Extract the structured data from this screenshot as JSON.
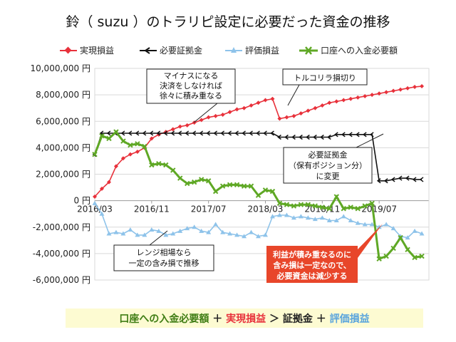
{
  "chart_data": {
    "type": "line",
    "title": "鈴（ suzu ）のトラリピ設定に必要だった資金の推移",
    "y_unit": "円",
    "ylim": [
      -6000000,
      10000000
    ],
    "y_ticks": [
      10000000,
      8000000,
      6000000,
      4000000,
      2000000,
      0,
      -2000000,
      -4000000,
      -6000000
    ],
    "y_tick_labels": [
      "10,000,000 円",
      "8,000,000 円",
      "6,000,000 円",
      "4,000,000 円",
      "2,000,000 円",
      "0 円",
      "-2,000,000 円",
      "-4,000,000 円",
      "-6,000,000 円"
    ],
    "x_tick_labels": [
      "2016/03",
      "2016/11",
      "2017/07",
      "2018/03",
      "2018/11",
      "2019/07"
    ],
    "x_tick_positions": [
      0,
      8,
      16,
      24,
      32,
      40
    ],
    "x_range": [
      0,
      47
    ],
    "grid": "horizontal",
    "legend_position": "top",
    "series": [
      {
        "name": "実現損益",
        "color": "#e8313b",
        "marker": "diamond",
        "values": [
          300000,
          900000,
          1400000,
          2600000,
          3200000,
          3500000,
          3700000,
          4000000,
          4700000,
          5000000,
          5200000,
          5400000,
          5600000,
          5700000,
          5900000,
          6100000,
          6300000,
          6400000,
          6500000,
          6700000,
          6900000,
          7000000,
          7200000,
          7400000,
          7600000,
          7700000,
          6200000,
          6300000,
          6400000,
          6600000,
          6800000,
          7000000,
          7200000,
          7400000,
          7500000,
          7600000,
          7700000,
          7800000,
          7900000,
          8000000,
          8100000,
          8200000,
          8300000,
          8400000,
          8500000,
          8600000,
          8650000
        ]
      },
      {
        "name": "必要証拠金",
        "color": "#111111",
        "marker": "chevron",
        "values": [
          3500000,
          5100000,
          5100000,
          5100000,
          5100000,
          5100000,
          5100000,
          5100000,
          5100000,
          5100000,
          5100000,
          5100000,
          5100000,
          5100000,
          5100000,
          5100000,
          5100000,
          5100000,
          5100000,
          5100000,
          5100000,
          5100000,
          5100000,
          5100000,
          5100000,
          5100000,
          4800000,
          4800000,
          4800000,
          4800000,
          4800000,
          4800000,
          4800000,
          4800000,
          5000000,
          5000000,
          5000000,
          5000000,
          5000000,
          5000000,
          1500000,
          1500000,
          1600000,
          1700000,
          1700000,
          1600000,
          1600000
        ]
      },
      {
        "name": "評価損益",
        "color": "#8ec3ea",
        "marker": "triangle",
        "values": [
          -200000,
          -1000000,
          -2500000,
          -2400000,
          -2500000,
          -2200000,
          -2600000,
          -2600000,
          -2200000,
          -2300000,
          -2600000,
          -2500000,
          -2300000,
          -2100000,
          -2000000,
          -2300000,
          -2400000,
          -1800000,
          -2400000,
          -2500000,
          -2600000,
          -2700000,
          -2400000,
          -2700000,
          -2600000,
          -1200000,
          -1100000,
          -1100000,
          -1300000,
          -1200000,
          -1300000,
          -1400000,
          -1300000,
          -1500000,
          -1500000,
          -1200000,
          -1500000,
          -1700000,
          -1800000,
          -1800000,
          -2000000,
          -1800000,
          -2100000,
          -2700000,
          -2800000,
          -2300000,
          -2500000
        ]
      },
      {
        "name": "口座への入金必要額",
        "color": "#5fa825",
        "marker": "x",
        "values": [
          3500000,
          4900000,
          4700000,
          5200000,
          4500000,
          4200000,
          4300000,
          4100000,
          2700000,
          2800000,
          2700000,
          2300000,
          1700000,
          1300000,
          1400000,
          1600000,
          1500000,
          700000,
          1100000,
          1200000,
          1200000,
          1100000,
          1100000,
          400000,
          800000,
          700000,
          -200000,
          -300000,
          -400000,
          -300000,
          -300000,
          -400000,
          -500000,
          -600000,
          300000,
          -600000,
          -500000,
          -600000,
          -400000,
          -200000,
          -4400000,
          -4200000,
          -3600000,
          -2800000,
          -3700000,
          -4300000,
          -4200000
        ]
      }
    ],
    "annotations": [
      {
        "lines": [
          "マイナスになる",
          "決済をしなければ",
          "徐々に積み重なる"
        ]
      },
      {
        "lines": [
          "トルコリラ損切り"
        ]
      },
      {
        "lines": [
          "必要証拠金",
          "（保有ポジション分）",
          "に変更"
        ]
      },
      {
        "lines": [
          "レンジ相場なら",
          "一定の含み損で推移"
        ]
      },
      {
        "lines": [
          "利益が積み重なるのに",
          "含み損は一定なので、",
          "必要資金は減少する"
        ]
      }
    ]
  },
  "formula": {
    "part1": "口座への入金必要額",
    "op1": "＋",
    "part2": "実現損益",
    "op2": "＞",
    "part3": "証拠金",
    "op3": "＋",
    "part4": "評価損益",
    "color_green": "#3f7d14",
    "color_red": "#e8313b",
    "color_blue": "#5aa5dd",
    "box_color": "#fdfbd2"
  },
  "colors": {
    "annotation_red": "#e8462a",
    "grid": "#d9d9d9"
  }
}
